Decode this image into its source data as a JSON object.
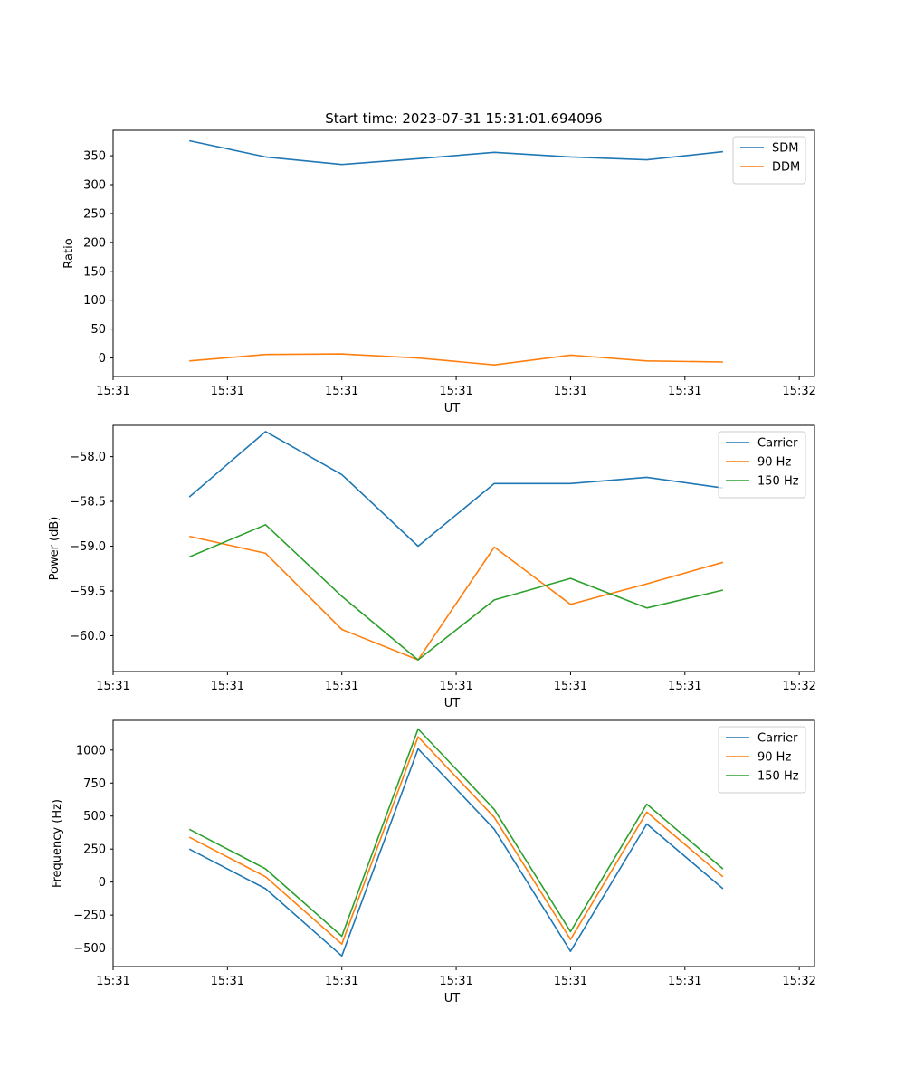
{
  "chart_data": [
    {
      "type": "line",
      "title": "Start time: 2023-07-31 15:31:01.694096",
      "xlabel": "UT",
      "ylabel": "Ratio",
      "x": [
        1,
        2,
        3,
        4,
        5,
        6,
        7,
        8
      ],
      "xlim": [
        0,
        9.2
      ],
      "x_ticks": [
        {
          "x": 0,
          "label": "15:31"
        },
        {
          "x": 1.5,
          "label": "15:31"
        },
        {
          "x": 3,
          "label": "15:31"
        },
        {
          "x": 4.5,
          "label": "15:31"
        },
        {
          "x": 6,
          "label": "15:31"
        },
        {
          "x": 7.5,
          "label": "15:31"
        },
        {
          "x": 9,
          "label": "15:32"
        }
      ],
      "ylim": [
        -32,
        394
      ],
      "y_ticks": [
        0,
        50,
        100,
        150,
        200,
        250,
        300,
        350
      ],
      "y_tick_labels": [
        "0",
        "50",
        "100",
        "150",
        "200",
        "250",
        "300",
        "350"
      ],
      "legend_position": "top-right",
      "series": [
        {
          "name": "SDM",
          "color": "#1f77b4",
          "values": [
            376,
            348,
            335,
            345,
            356,
            348,
            343,
            357
          ]
        },
        {
          "name": "DDM",
          "color": "#ff7f0e",
          "values": [
            -5,
            6,
            7,
            0,
            -12,
            5,
            -5,
            -7
          ]
        }
      ]
    },
    {
      "type": "line",
      "title": "",
      "xlabel": "UT",
      "ylabel": "Power (dB)",
      "x": [
        1,
        2,
        3,
        4,
        5,
        6,
        7,
        8
      ],
      "xlim": [
        0,
        9.2
      ],
      "x_ticks": [
        {
          "x": 0,
          "label": "15:31"
        },
        {
          "x": 1.5,
          "label": "15:31"
        },
        {
          "x": 3,
          "label": "15:31"
        },
        {
          "x": 4.5,
          "label": "15:31"
        },
        {
          "x": 6,
          "label": "15:31"
        },
        {
          "x": 7.5,
          "label": "15:31"
        },
        {
          "x": 9,
          "label": "15:32"
        }
      ],
      "ylim": [
        -60.4,
        -57.65
      ],
      "y_ticks": [
        -58.0,
        -58.5,
        -59.0,
        -59.5,
        -60.0
      ],
      "y_tick_labels": [
        "−58.0",
        "−58.5",
        "−59.0",
        "−59.5",
        "−60.0"
      ],
      "legend_position": "top-right",
      "series": [
        {
          "name": "Carrier",
          "color": "#1f77b4",
          "values": [
            -58.45,
            -57.72,
            -58.2,
            -59.0,
            -58.3,
            -58.3,
            -58.23,
            -58.35
          ]
        },
        {
          "name": "90 Hz",
          "color": "#ff7f0e",
          "values": [
            -58.89,
            -59.08,
            -59.93,
            -60.27,
            -59.01,
            -59.65,
            -59.42,
            -59.18
          ]
        },
        {
          "name": "150 Hz",
          "color": "#2ca02c",
          "values": [
            -59.12,
            -58.76,
            -59.56,
            -60.27,
            -59.6,
            -59.36,
            -59.69,
            -59.49
          ]
        }
      ]
    },
    {
      "type": "line",
      "title": "",
      "xlabel": "UT",
      "ylabel": "Frequency (Hz)",
      "x": [
        1,
        2,
        3,
        4,
        5,
        6,
        7,
        8
      ],
      "xlim": [
        0,
        9.2
      ],
      "x_ticks": [
        {
          "x": 0,
          "label": "15:31"
        },
        {
          "x": 1.5,
          "label": "15:31"
        },
        {
          "x": 3,
          "label": "15:31"
        },
        {
          "x": 4.5,
          "label": "15:31"
        },
        {
          "x": 6,
          "label": "15:31"
        },
        {
          "x": 7.5,
          "label": "15:31"
        },
        {
          "x": 9,
          "label": "15:32"
        }
      ],
      "ylim": [
        -640,
        1225
      ],
      "y_ticks": [
        -500,
        -250,
        0,
        250,
        500,
        750,
        1000
      ],
      "y_tick_labels": [
        "−500",
        "−250",
        "0",
        "250",
        "500",
        "750",
        "1000"
      ],
      "legend_position": "top-right",
      "series": [
        {
          "name": "Carrier",
          "color": "#1f77b4",
          "values": [
            250,
            -50,
            -560,
            1010,
            400,
            -525,
            440,
            -50
          ]
        },
        {
          "name": "90 Hz",
          "color": "#ff7f0e",
          "values": [
            340,
            40,
            -470,
            1100,
            490,
            -435,
            530,
            40
          ]
        },
        {
          "name": "150 Hz",
          "color": "#2ca02c",
          "values": [
            400,
            100,
            -410,
            1160,
            550,
            -375,
            590,
            100
          ]
        }
      ]
    }
  ]
}
